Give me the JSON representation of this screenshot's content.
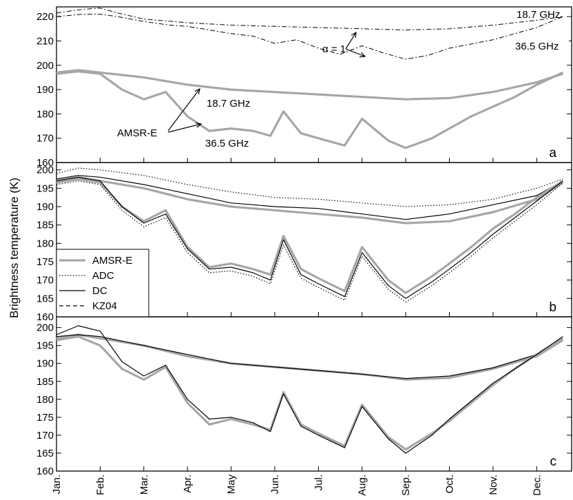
{
  "ylabel": "Brightness temperature (K)",
  "months": [
    "Jan.",
    "Feb.",
    "Mar.",
    "Apr.",
    "May",
    "Jun.",
    "Jul.",
    "Aug.",
    "Sep.",
    "Oct.",
    "Nov.",
    "Dec."
  ],
  "colors": {
    "amsr": "#a6a6a6",
    "model": "#000000"
  },
  "panels": [
    {
      "id": "a",
      "ylim": [
        160,
        224
      ],
      "yticks": [
        160,
        170,
        180,
        190,
        200,
        210,
        220
      ],
      "annotations": [
        "18.7 GHz",
        "36.5 GHz",
        "α = 1",
        "18.7 GHz",
        "AMSR-E",
        "36.5 GHz"
      ]
    },
    {
      "id": "b",
      "ylim": [
        160,
        202
      ],
      "yticks": [
        160,
        165,
        170,
        175,
        180,
        185,
        190,
        195,
        200
      ],
      "legend": [
        "AMSR-E",
        "ADC",
        "DC",
        "KZ04"
      ]
    },
    {
      "id": "c",
      "ylim": [
        160,
        203
      ],
      "yticks": [
        160,
        165,
        170,
        175,
        180,
        185,
        190,
        195,
        200
      ]
    }
  ],
  "chart_data": [
    {
      "type": "line",
      "panel": "a",
      "x_unit": "month (1 = Jan.)",
      "ylabel": "Brightness temperature (K)",
      "ylim": [
        160,
        224
      ],
      "series": [
        {
          "name": "",
          "style": "dash-dot",
          "x": [
            1.0,
            1.6,
            2.0,
            2.4,
            3.0,
            4.0,
            5.0,
            6.0,
            7.0,
            8.0,
            9.0,
            10.0,
            11.0,
            12.0,
            12.6
          ],
          "y": [
            221.5,
            223.0,
            223.5,
            221.5,
            219.0,
            217.5,
            216.5,
            216.0,
            215.5,
            215.0,
            214.5,
            215.0,
            216.5,
            218.5,
            220.0
          ]
        },
        {
          "name": "",
          "style": "dash-dot",
          "x": [
            1.0,
            1.6,
            2.0,
            2.4,
            3.0,
            3.6,
            4.0,
            4.5,
            5.0,
            5.5,
            6.0,
            6.5,
            7.0,
            7.5,
            8.0,
            8.5,
            9.0,
            9.5,
            10.0,
            11.0,
            12.0,
            12.6
          ],
          "y": [
            220.0,
            221.0,
            221.0,
            220.0,
            218.0,
            216.5,
            216.0,
            214.5,
            213.0,
            212.0,
            209.0,
            210.5,
            207.0,
            204.5,
            208.0,
            205.0,
            202.5,
            204.0,
            207.0,
            210.5,
            215.5,
            220.0
          ]
        },
        {
          "name": "AMSR-E",
          "style": "thick-grey",
          "x": [
            1.0,
            1.5,
            2.0,
            3.0,
            4.0,
            5.0,
            6.0,
            7.0,
            8.0,
            9.0,
            10.0,
            11.0,
            12.0,
            12.6
          ],
          "y": [
            197.0,
            198.0,
            197.0,
            195.0,
            192.0,
            190.0,
            189.0,
            188.0,
            187.0,
            186.0,
            186.5,
            189.0,
            193.0,
            196.5
          ]
        },
        {
          "name": "AMSR-E",
          "style": "thick-grey",
          "x": [
            1.0,
            1.5,
            2.0,
            2.5,
            3.0,
            3.5,
            4.0,
            4.5,
            5.0,
            5.5,
            5.9,
            6.2,
            6.6,
            7.0,
            7.6,
            8.0,
            8.6,
            9.0,
            9.6,
            10.0,
            10.5,
            11.0,
            11.5,
            12.0,
            12.6
          ],
          "y": [
            196.5,
            197.5,
            196.5,
            190.0,
            186.0,
            189.0,
            179.0,
            173.0,
            174.0,
            173.0,
            171.0,
            181.0,
            172.0,
            170.0,
            167.0,
            178.0,
            169.0,
            166.0,
            170.0,
            174.0,
            179.0,
            183.0,
            187.0,
            192.0,
            197.0
          ]
        }
      ]
    },
    {
      "type": "line",
      "panel": "b",
      "x_unit": "month (1 = Jan.)",
      "ylabel": "Brightness temperature (K)",
      "ylim": [
        160,
        202
      ],
      "series": [
        {
          "name": "AMSR-E",
          "x": [
            1.0,
            1.5,
            2.0,
            3.0,
            4.0,
            5.0,
            6.0,
            7.0,
            8.0,
            9.0,
            10.0,
            11.0,
            12.0,
            12.6
          ],
          "y": [
            197.0,
            198.0,
            197.0,
            195.0,
            192.0,
            190.0,
            189.0,
            188.0,
            187.0,
            185.5,
            186.0,
            188.5,
            192.0,
            196.5
          ]
        },
        {
          "name": "ADC",
          "x": [
            1.0,
            1.5,
            2.0,
            3.0,
            4.0,
            5.0,
            6.0,
            7.0,
            8.0,
            9.0,
            10.0,
            11.0,
            12.0,
            12.6
          ],
          "y": [
            199.0,
            200.5,
            200.0,
            198.5,
            196.0,
            194.0,
            192.5,
            192.0,
            191.0,
            190.0,
            190.5,
            192.0,
            195.0,
            197.5
          ]
        },
        {
          "name": "DC",
          "x": [
            1.0,
            1.5,
            2.0,
            3.0,
            4.0,
            5.0,
            6.0,
            7.0,
            8.0,
            9.0,
            10.0,
            11.0,
            12.0,
            12.6
          ],
          "y": [
            197.5,
            198.5,
            198.0,
            196.0,
            193.5,
            191.0,
            190.0,
            189.5,
            188.0,
            186.5,
            188.0,
            190.5,
            193.0,
            197.0
          ]
        },
        {
          "name": "AMSR-E",
          "x": [
            1.0,
            1.5,
            2.0,
            2.5,
            3.0,
            3.5,
            4.0,
            4.5,
            5.0,
            5.5,
            5.9,
            6.2,
            6.6,
            7.0,
            7.6,
            8.0,
            8.6,
            9.0,
            9.6,
            10.0,
            10.5,
            11.0,
            11.5,
            12.0,
            12.6
          ],
          "y": [
            196.5,
            197.5,
            196.5,
            190.0,
            186.0,
            189.0,
            179.0,
            173.5,
            174.5,
            173.0,
            171.5,
            182.0,
            173.0,
            170.5,
            167.0,
            179.0,
            170.0,
            166.5,
            171.0,
            174.5,
            179.0,
            184.0,
            188.0,
            192.5,
            197.0
          ]
        },
        {
          "name": "ADC",
          "x": [
            1.0,
            1.5,
            2.0,
            2.5,
            3.0,
            3.5,
            4.0,
            4.5,
            5.0,
            5.5,
            5.9,
            6.2,
            6.6,
            7.0,
            7.6,
            8.0,
            8.6,
            9.0,
            9.6,
            10.0,
            10.5,
            11.0,
            11.5,
            12.0,
            12.6
          ],
          "y": [
            196.0,
            197.0,
            196.0,
            189.0,
            184.5,
            187.0,
            177.5,
            172.0,
            172.5,
            171.0,
            169.0,
            179.5,
            170.5,
            168.0,
            164.5,
            176.5,
            167.5,
            164.0,
            168.5,
            172.0,
            176.5,
            181.5,
            186.0,
            190.5,
            196.5
          ]
        },
        {
          "name": "DC",
          "x": [
            1.0,
            1.5,
            2.0,
            2.5,
            3.0,
            3.5,
            4.0,
            4.5,
            5.0,
            5.5,
            5.9,
            6.2,
            6.6,
            7.0,
            7.6,
            8.0,
            8.6,
            9.0,
            9.6,
            10.0,
            10.5,
            11.0,
            11.5,
            12.0,
            12.6
          ],
          "y": [
            197.0,
            198.0,
            197.0,
            190.0,
            185.5,
            188.0,
            178.5,
            173.0,
            173.5,
            172.0,
            170.0,
            181.0,
            171.5,
            169.0,
            165.5,
            177.5,
            168.5,
            165.0,
            169.5,
            173.0,
            177.5,
            182.5,
            187.0,
            191.5,
            197.0
          ]
        }
      ]
    },
    {
      "type": "line",
      "panel": "c",
      "x_unit": "month (1 = Jan.)",
      "ylabel": "Brightness temperature (K)",
      "ylim": [
        160,
        203
      ],
      "series": [
        {
          "name": "AMSR-E",
          "x": [
            1.0,
            1.5,
            2.0,
            3.0,
            4.0,
            5.0,
            6.0,
            7.0,
            8.0,
            9.0,
            10.0,
            11.0,
            12.0,
            12.6
          ],
          "y": [
            197.0,
            198.0,
            197.0,
            195.0,
            192.0,
            190.0,
            189.0,
            188.0,
            187.0,
            185.5,
            186.0,
            188.5,
            192.0,
            196.5
          ]
        },
        {
          "name": "DC",
          "x": [
            1.0,
            1.5,
            2.0,
            3.0,
            4.0,
            5.0,
            6.0,
            7.0,
            8.0,
            9.0,
            10.0,
            11.0,
            12.0,
            12.6
          ],
          "y": [
            197.5,
            198.0,
            197.5,
            195.0,
            192.5,
            190.0,
            189.0,
            188.0,
            187.0,
            185.8,
            186.5,
            188.8,
            192.5,
            196.8
          ]
        },
        {
          "name": "AMSR-E",
          "x": [
            1.0,
            1.5,
            2.0,
            2.5,
            3.0,
            3.5,
            4.0,
            4.5,
            5.0,
            5.5,
            5.9,
            6.2,
            6.6,
            7.0,
            7.6,
            8.0,
            8.6,
            9.0,
            9.6,
            10.0,
            10.5,
            11.0,
            11.5,
            12.0,
            12.6
          ],
          "y": [
            196.5,
            197.5,
            195.0,
            188.5,
            185.5,
            189.0,
            179.0,
            173.0,
            174.5,
            173.0,
            171.5,
            182.0,
            173.0,
            170.5,
            167.0,
            178.5,
            169.5,
            166.0,
            170.5,
            174.0,
            179.0,
            184.0,
            188.5,
            192.5,
            197.0
          ]
        },
        {
          "name": "DC",
          "x": [
            1.0,
            1.5,
            2.0,
            2.5,
            3.0,
            3.5,
            4.0,
            4.5,
            5.0,
            5.5,
            5.9,
            6.2,
            6.6,
            7.0,
            7.6,
            8.0,
            8.6,
            9.0,
            9.6,
            10.0,
            10.5,
            11.0,
            11.5,
            12.0,
            12.6
          ],
          "y": [
            198.0,
            200.5,
            199.0,
            190.5,
            186.5,
            189.5,
            180.0,
            174.5,
            175.0,
            173.5,
            171.0,
            181.5,
            172.5,
            170.0,
            166.5,
            178.0,
            169.0,
            165.0,
            170.0,
            174.5,
            179.5,
            184.5,
            188.5,
            192.5,
            197.5
          ]
        }
      ]
    }
  ]
}
